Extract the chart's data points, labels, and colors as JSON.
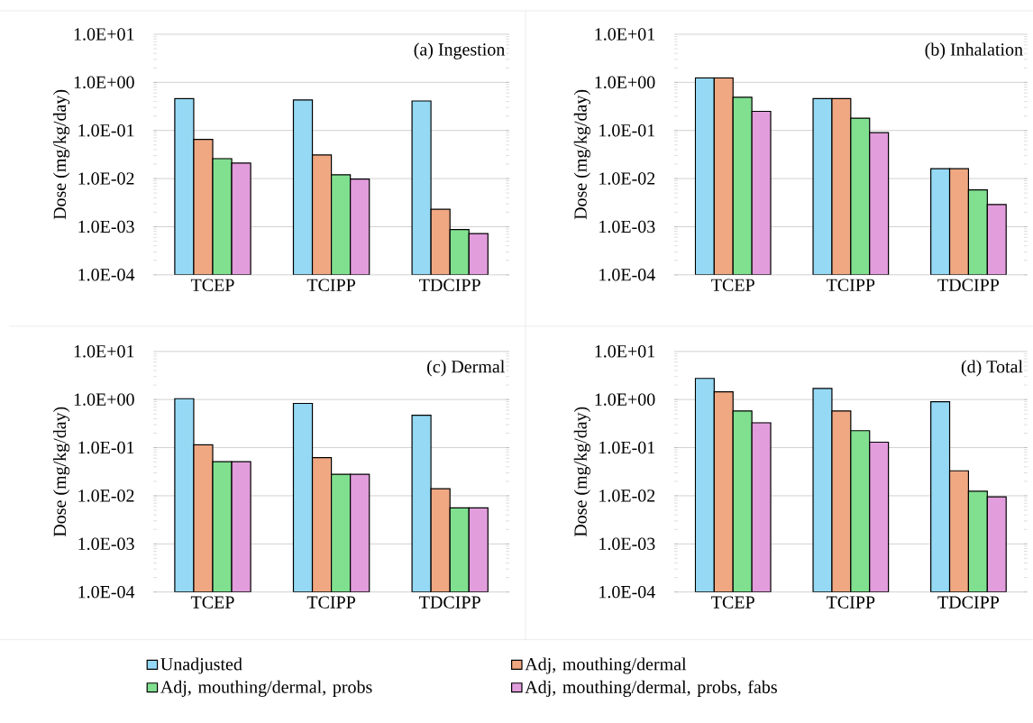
{
  "chart_data": [
    {
      "type": "bar",
      "title": "(a) Ingestion",
      "ylabel": "Dose (mg/kg/day)",
      "categories": [
        "TCEP",
        "TCIPP",
        "TDCIPP"
      ],
      "log": "y",
      "grid": "y",
      "legend": "bottom",
      "ylim": [
        0.0001,
        10
      ],
      "yticks": [
        {
          "value": 0.0001,
          "label": "1.0E-04"
        },
        {
          "value": 0.001,
          "label": "1.0E-03"
        },
        {
          "value": 0.01,
          "label": "1.0E-02"
        },
        {
          "value": 0.1,
          "label": "1.0E-01"
        },
        {
          "value": 1,
          "label": "1.0E+00"
        },
        {
          "value": 10,
          "label": "1.0E+01"
        }
      ],
      "series": [
        {
          "name": "Unadjusted",
          "color": "#95d9f5",
          "values": [
            0.46,
            0.43,
            0.41
          ]
        },
        {
          "name": "Adj, mouthing/dermal",
          "color": "#f0a882",
          "values": [
            0.065,
            0.031,
            0.0023
          ]
        },
        {
          "name": "Adj, mouthing/dermal, probs",
          "color": "#80e090",
          "values": [
            0.026,
            0.012,
            0.00087
          ]
        },
        {
          "name": "Adj, mouthing/dermal, probs, fabs",
          "color": "#e29ddc",
          "values": [
            0.021,
            0.0098,
            0.00072
          ]
        }
      ]
    },
    {
      "type": "bar",
      "title": "(b) Inhalation",
      "ylabel": "Dose (mg/kg/day)",
      "categories": [
        "TCEP",
        "TCIPP",
        "TDCIPP"
      ],
      "log": "y",
      "grid": "y",
      "ylim": [
        0.0001,
        10
      ],
      "yticks": [
        {
          "value": 0.0001,
          "label": "1.0E-04"
        },
        {
          "value": 0.001,
          "label": "1.0E-03"
        },
        {
          "value": 0.01,
          "label": "1.0E-02"
        },
        {
          "value": 0.1,
          "label": "1.0E-01"
        },
        {
          "value": 1,
          "label": "1.0E+00"
        },
        {
          "value": 10,
          "label": "1.0E+01"
        }
      ],
      "series": [
        {
          "color": "#95d9f5",
          "values": [
            1.24,
            0.46,
            0.016
          ]
        },
        {
          "color": "#f0a882",
          "values": [
            1.24,
            0.46,
            0.016
          ]
        },
        {
          "color": "#80e090",
          "values": [
            0.49,
            0.18,
            0.0058
          ]
        },
        {
          "color": "#e29ddc",
          "values": [
            0.25,
            0.09,
            0.0029
          ]
        }
      ]
    },
    {
      "type": "bar",
      "title": "(c) Dermal",
      "ylabel": "Dose (mg/kg/day)",
      "categories": [
        "TCEP",
        "TCIPP",
        "TDCIPP"
      ],
      "log": "y",
      "grid": "y",
      "ylim": [
        0.0001,
        10
      ],
      "yticks": [
        {
          "value": 0.0001,
          "label": "1.0E-04"
        },
        {
          "value": 0.001,
          "label": "1.0E-03"
        },
        {
          "value": 0.01,
          "label": "1.0E-02"
        },
        {
          "value": 0.1,
          "label": "1.0E-01"
        },
        {
          "value": 1,
          "label": "1.0E+00"
        },
        {
          "value": 10,
          "label": "1.0E+01"
        }
      ],
      "series": [
        {
          "color": "#95d9f5",
          "values": [
            1.05,
            0.83,
            0.47
          ]
        },
        {
          "color": "#f0a882",
          "values": [
            0.115,
            0.062,
            0.014
          ]
        },
        {
          "color": "#80e090",
          "values": [
            0.051,
            0.028,
            0.0056
          ]
        },
        {
          "color": "#e29ddc",
          "values": [
            0.051,
            0.028,
            0.0056
          ]
        }
      ]
    },
    {
      "type": "bar",
      "title": "(d) Total",
      "ylabel": "Dose (mg/kg/day)",
      "categories": [
        "TCEP",
        "TCIPP",
        "TDCIPP"
      ],
      "log": "y",
      "grid": "y",
      "ylim": [
        0.0001,
        10
      ],
      "yticks": [
        {
          "value": 0.0001,
          "label": "1.0E-04"
        },
        {
          "value": 0.001,
          "label": "1.0E-03"
        },
        {
          "value": 0.01,
          "label": "1.0E-02"
        },
        {
          "value": 0.1,
          "label": "1.0E-01"
        },
        {
          "value": 1,
          "label": "1.0E+00"
        },
        {
          "value": 10,
          "label": "1.0E+01"
        }
      ],
      "series": [
        {
          "color": "#95d9f5",
          "values": [
            2.75,
            1.7,
            0.9
          ]
        },
        {
          "color": "#f0a882",
          "values": [
            1.45,
            0.58,
            0.033
          ]
        },
        {
          "color": "#80e090",
          "values": [
            0.58,
            0.225,
            0.0124
          ]
        },
        {
          "color": "#e29ddc",
          "values": [
            0.33,
            0.13,
            0.0095
          ]
        }
      ]
    }
  ]
}
